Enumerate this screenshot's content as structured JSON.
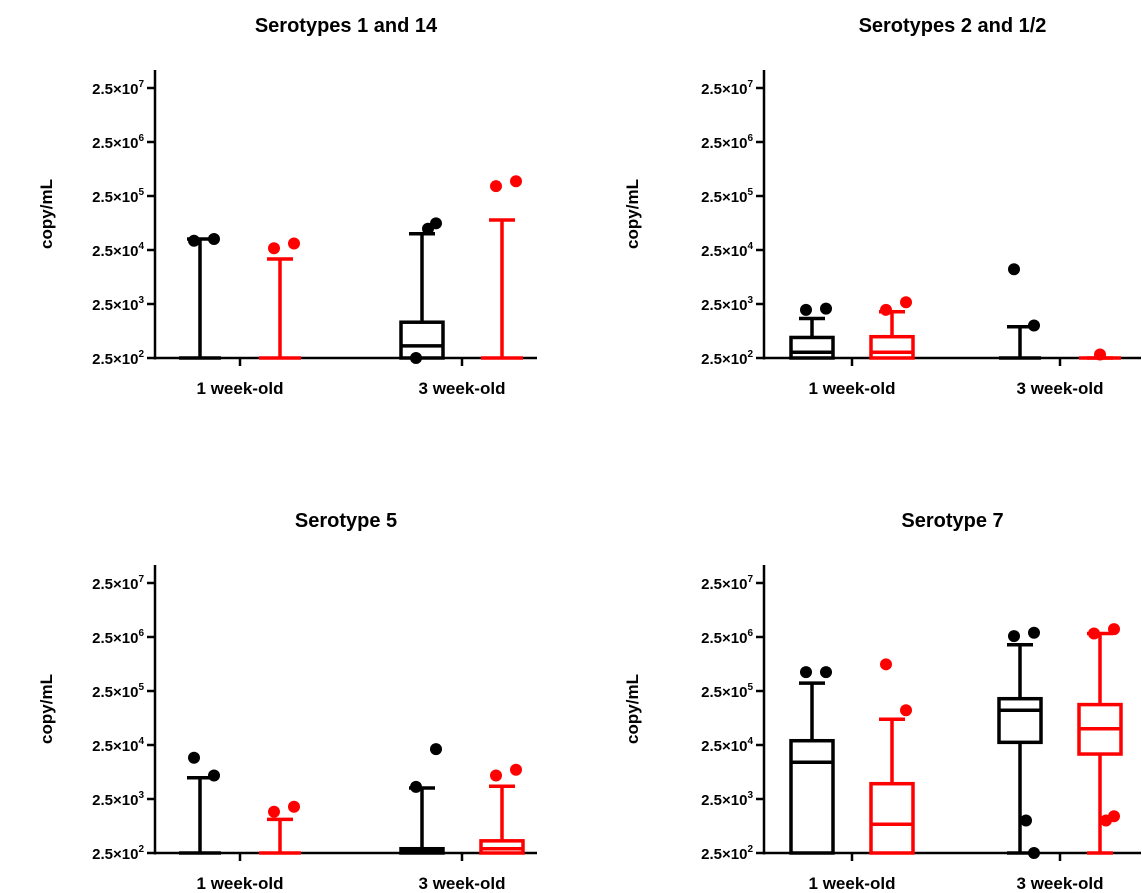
{
  "palette": {
    "group1": "#000000",
    "group2": "#ff0000"
  },
  "chart_data": [
    {
      "type": "box",
      "title": "Serotypes 1 and 14",
      "ylabel": "copy/mL",
      "y_scale": "log",
      "ylim": [
        250,
        25000000
      ],
      "y_ticks": [
        {
          "value": 250,
          "base": "2.5×10",
          "exp": "2"
        },
        {
          "value": 2500,
          "base": "2.5×10",
          "exp": "3"
        },
        {
          "value": 25000,
          "base": "2.5×10",
          "exp": "4"
        },
        {
          "value": 250000,
          "base": "2.5×10",
          "exp": "5"
        },
        {
          "value": 2500000,
          "base": "2.5×10",
          "exp": "6"
        },
        {
          "value": 25000000,
          "base": "2.5×10",
          "exp": "7"
        }
      ],
      "categories": [
        "1 week-old",
        "3 week-old"
      ],
      "boxes": [
        {
          "category": 0,
          "group": "group1",
          "min": 250,
          "q1": 250,
          "median": 250,
          "q3": 250,
          "max": 40000,
          "outliers": [
            37000,
            40000
          ]
        },
        {
          "category": 0,
          "group": "group2",
          "min": 250,
          "q1": 250,
          "median": 250,
          "q3": 250,
          "max": 17000,
          "outliers": [
            27000,
            33000
          ]
        },
        {
          "category": 1,
          "group": "group1",
          "min": 250,
          "q1": 250,
          "median": 420,
          "q3": 1150,
          "max": 50000,
          "outliers": [
            250,
            78000,
            62000
          ]
        },
        {
          "category": 1,
          "group": "group2",
          "min": 250,
          "q1": 250,
          "median": 250,
          "q3": 250,
          "max": 90000,
          "outliers": [
            380000,
            470000
          ]
        }
      ]
    },
    {
      "type": "box",
      "title": "Serotypes 2 and 1/2",
      "ylabel": "copy/mL",
      "y_scale": "log",
      "ylim": [
        250,
        25000000
      ],
      "y_ticks": [
        {
          "value": 250,
          "base": "2.5×10",
          "exp": "2"
        },
        {
          "value": 2500,
          "base": "2.5×10",
          "exp": "3"
        },
        {
          "value": 25000,
          "base": "2.5×10",
          "exp": "4"
        },
        {
          "value": 250000,
          "base": "2.5×10",
          "exp": "5"
        },
        {
          "value": 2500000,
          "base": "2.5×10",
          "exp": "6"
        },
        {
          "value": 25000000,
          "base": "2.5×10",
          "exp": "7"
        }
      ],
      "categories": [
        "1 week-old",
        "3 week-old"
      ],
      "boxes": [
        {
          "category": 0,
          "group": "group1",
          "min": 250,
          "q1": 250,
          "median": 320,
          "q3": 600,
          "max": 1350,
          "outliers": [
            1950,
            2050
          ]
        },
        {
          "category": 0,
          "group": "group2",
          "min": 250,
          "q1": 250,
          "median": 320,
          "q3": 620,
          "max": 1800,
          "outliers": [
            1950,
            2700
          ]
        },
        {
          "category": 1,
          "group": "group1",
          "min": 250,
          "q1": 250,
          "median": 250,
          "q3": 250,
          "max": 950,
          "outliers": [
            11000,
            1000
          ]
        },
        {
          "category": 1,
          "group": "group2",
          "min": 250,
          "q1": 250,
          "median": 250,
          "q3": 250,
          "max": 250,
          "outliers": [
            290
          ]
        }
      ]
    },
    {
      "type": "box",
      "title": "Serotype 5",
      "ylabel": "copy/mL",
      "y_scale": "log",
      "ylim": [
        250,
        25000000
      ],
      "y_ticks": [
        {
          "value": 250,
          "base": "2.5×10",
          "exp": "2"
        },
        {
          "value": 2500,
          "base": "2.5×10",
          "exp": "3"
        },
        {
          "value": 25000,
          "base": "2.5×10",
          "exp": "4"
        },
        {
          "value": 250000,
          "base": "2.5×10",
          "exp": "5"
        },
        {
          "value": 2500000,
          "base": "2.5×10",
          "exp": "6"
        },
        {
          "value": 25000000,
          "base": "2.5×10",
          "exp": "7"
        }
      ],
      "categories": [
        "1 week-old",
        "3 week-old"
      ],
      "boxes": [
        {
          "category": 0,
          "group": "group1",
          "min": 250,
          "q1": 250,
          "median": 250,
          "q3": 250,
          "max": 6200,
          "outliers": [
            14500,
            6800
          ]
        },
        {
          "category": 0,
          "group": "group2",
          "min": 250,
          "q1": 250,
          "median": 250,
          "q3": 250,
          "max": 1050,
          "outliers": [
            1450,
            1800
          ]
        },
        {
          "category": 1,
          "group": "group1",
          "min": 250,
          "q1": 250,
          "median": 280,
          "q3": 300,
          "max": 4000,
          "outliers": [
            4200,
            21000
          ]
        },
        {
          "category": 1,
          "group": "group2",
          "min": 250,
          "q1": 250,
          "median": 300,
          "q3": 420,
          "max": 4300,
          "outliers": [
            6800,
            8700
          ]
        }
      ]
    },
    {
      "type": "box",
      "title": "Serotype 7",
      "ylabel": "copy/mL",
      "y_scale": "log",
      "ylim": [
        250,
        25000000
      ],
      "y_ticks": [
        {
          "value": 250,
          "base": "2.5×10",
          "exp": "2"
        },
        {
          "value": 2500,
          "base": "2.5×10",
          "exp": "3"
        },
        {
          "value": 25000,
          "base": "2.5×10",
          "exp": "4"
        },
        {
          "value": 250000,
          "base": "2.5×10",
          "exp": "5"
        },
        {
          "value": 2500000,
          "base": "2.5×10",
          "exp": "6"
        },
        {
          "value": 25000000,
          "base": "2.5×10",
          "exp": "7"
        }
      ],
      "categories": [
        "1 week-old",
        "3 week-old"
      ],
      "boxes": [
        {
          "category": 0,
          "group": "group1",
          "min": 250,
          "q1": 250,
          "median": 12000,
          "q3": 30000,
          "max": 350000,
          "outliers": [
            560000,
            560000
          ]
        },
        {
          "category": 0,
          "group": "group2",
          "min": 250,
          "q1": 250,
          "median": 850,
          "q3": 4800,
          "max": 75000,
          "outliers": [
            780000,
            110000
          ]
        },
        {
          "category": 1,
          "group": "group1",
          "min": 250,
          "q1": 28000,
          "median": 110000,
          "q3": 180000,
          "max": 1800000,
          "outliers": [
            2600000,
            3000000,
            1000,
            250
          ]
        },
        {
          "category": 1,
          "group": "group2",
          "min": 250,
          "q1": 17000,
          "median": 50000,
          "q3": 140000,
          "max": 2900000,
          "outliers": [
            2900000,
            3500000,
            1000,
            1200
          ]
        }
      ]
    }
  ]
}
